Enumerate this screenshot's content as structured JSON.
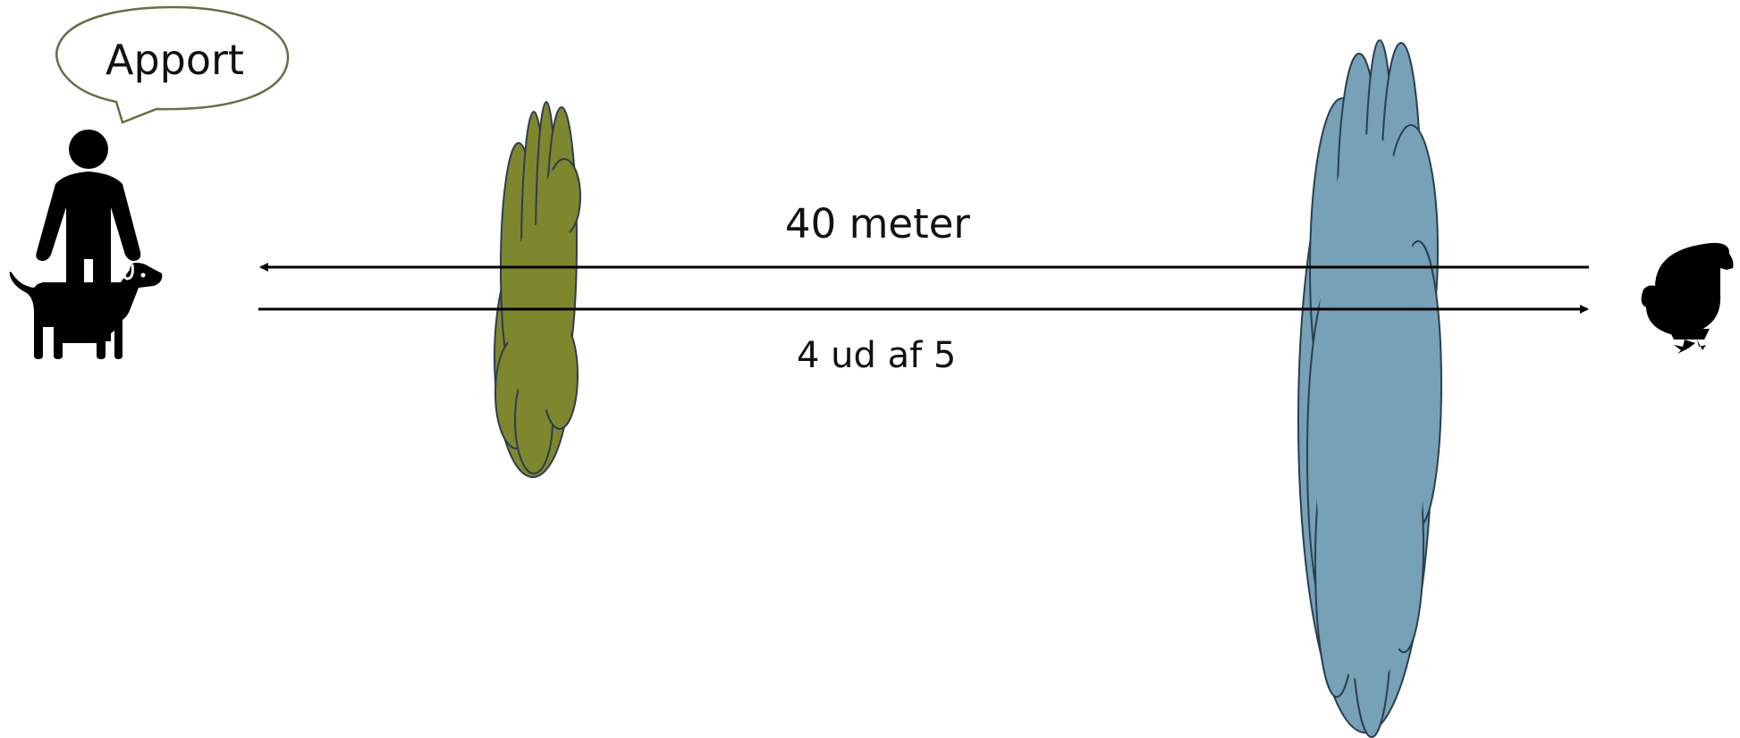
{
  "speech_bubble": {
    "text": "Apport"
  },
  "distance": {
    "label": "40 meter"
  },
  "score": {
    "label": "4 ud af 5"
  },
  "colors": {
    "bubble_stroke": "#6b6b45",
    "near_cover": "#7e872e",
    "far_cover": "#76a1b6",
    "cover_outline": "#2c3e50",
    "figure": "#000000",
    "arrow": "#000000"
  },
  "icons": {
    "handler": "person-with-dog-icon",
    "target": "duck-icon"
  }
}
